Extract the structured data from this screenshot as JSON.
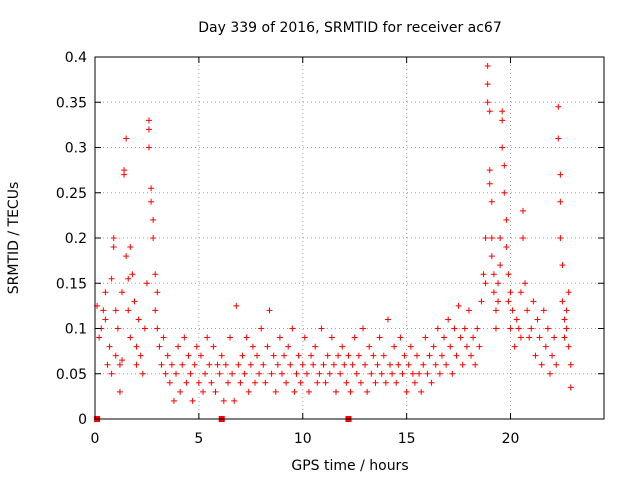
{
  "chart_data": {
    "type": "scatter",
    "title": "Day 339 of 2016, SRMTID for receiver ac67",
    "xlabel": "GPS time / hours",
    "ylabel": "SRMTID / TECUs",
    "xlim": [
      0,
      24.5
    ],
    "ylim": [
      0,
      0.4
    ],
    "xticks": [
      0,
      5,
      10,
      15,
      20
    ],
    "xtick_labels": [
      "0",
      "5",
      "10",
      "15",
      "20"
    ],
    "yticks": [
      0,
      0.05,
      0.1,
      0.15,
      0.2,
      0.25,
      0.3,
      0.35,
      0.4
    ],
    "ytick_labels": [
      "0",
      "0.05",
      "0.1",
      "0.15",
      "0.2",
      "0.25",
      "0.3",
      "0.35",
      "0.4"
    ],
    "grid": true,
    "marker": "+",
    "color": "#ff0000",
    "series": [
      {
        "name": "SRMTID",
        "points": [
          [
            0.1,
            0.125
          ],
          [
            0.2,
            0.09
          ],
          [
            0.3,
            0.1
          ],
          [
            0.4,
            0.12
          ],
          [
            0.5,
            0.14
          ],
          [
            0.5,
            0.11
          ],
          [
            0.6,
            0.06
          ],
          [
            0.7,
            0.08
          ],
          [
            0.8,
            0.05
          ],
          [
            0.8,
            0.155
          ],
          [
            0.9,
            0.2
          ],
          [
            0.9,
            0.19
          ],
          [
            1.0,
            0.12
          ],
          [
            1.0,
            0.07
          ],
          [
            1.1,
            0.1
          ],
          [
            1.2,
            0.03
          ],
          [
            1.2,
            0.06
          ],
          [
            1.3,
            0.14
          ],
          [
            1.3,
            0.065
          ],
          [
            1.4,
            0.27
          ],
          [
            1.4,
            0.275
          ],
          [
            1.5,
            0.31
          ],
          [
            1.5,
            0.18
          ],
          [
            1.6,
            0.12
          ],
          [
            1.6,
            0.155
          ],
          [
            1.7,
            0.09
          ],
          [
            1.7,
            0.19
          ],
          [
            1.8,
            0.16
          ],
          [
            1.9,
            0.13
          ],
          [
            2.0,
            0.08
          ],
          [
            2.0,
            0.06
          ],
          [
            2.1,
            0.11
          ],
          [
            2.2,
            0.07
          ],
          [
            2.3,
            0.05
          ],
          [
            2.4,
            0.1
          ],
          [
            2.5,
            0.15
          ],
          [
            2.6,
            0.33
          ],
          [
            2.6,
            0.32
          ],
          [
            2.6,
            0.3
          ],
          [
            2.7,
            0.255
          ],
          [
            2.7,
            0.24
          ],
          [
            2.8,
            0.22
          ],
          [
            2.8,
            0.2
          ],
          [
            2.9,
            0.16
          ],
          [
            2.9,
            0.12
          ],
          [
            3.0,
            0.14
          ],
          [
            3.0,
            0.1
          ],
          [
            3.1,
            0.08
          ],
          [
            3.2,
            0.06
          ],
          [
            3.3,
            0.09
          ],
          [
            3.4,
            0.05
          ],
          [
            3.5,
            0.07
          ],
          [
            3.6,
            0.04
          ],
          [
            3.7,
            0.06
          ],
          [
            3.8,
            0.02
          ],
          [
            3.9,
            0.05
          ],
          [
            4.0,
            0.08
          ],
          [
            4.1,
            0.03
          ],
          [
            4.2,
            0.06
          ],
          [
            4.3,
            0.09
          ],
          [
            4.4,
            0.04
          ],
          [
            4.5,
            0.07
          ],
          [
            4.6,
            0.05
          ],
          [
            4.7,
            0.02
          ],
          [
            4.8,
            0.06
          ],
          [
            4.9,
            0.08
          ],
          [
            5.0,
            0.04
          ],
          [
            5.1,
            0.07
          ],
          [
            5.2,
            0.03
          ],
          [
            5.3,
            0.05
          ],
          [
            5.4,
            0.09
          ],
          [
            5.5,
            0.06
          ],
          [
            5.6,
            0.04
          ],
          [
            5.7,
            0.08
          ],
          [
            5.8,
            0.03
          ],
          [
            5.9,
            0.06
          ],
          [
            6.0,
            0.05
          ],
          [
            6.1,
            0.07
          ],
          [
            6.2,
            0.02
          ],
          [
            6.3,
            0.06
          ],
          [
            6.4,
            0.04
          ],
          [
            6.5,
            0.09
          ],
          [
            6.6,
            0.05
          ],
          [
            6.7,
            0.02
          ],
          [
            6.8,
            0.125
          ],
          [
            6.9,
            0.06
          ],
          [
            7.0,
            0.04
          ],
          [
            7.1,
            0.07
          ],
          [
            7.2,
            0.05
          ],
          [
            7.3,
            0.09
          ],
          [
            7.4,
            0.03
          ],
          [
            7.5,
            0.06
          ],
          [
            7.6,
            0.08
          ],
          [
            7.7,
            0.04
          ],
          [
            7.8,
            0.07
          ],
          [
            7.9,
            0.05
          ],
          [
            8.0,
            0.1
          ],
          [
            8.1,
            0.06
          ],
          [
            8.2,
            0.04
          ],
          [
            8.3,
            0.08
          ],
          [
            8.4,
            0.12
          ],
          [
            8.5,
            0.05
          ],
          [
            8.6,
            0.07
          ],
          [
            8.7,
            0.03
          ],
          [
            8.8,
            0.06
          ],
          [
            8.9,
            0.09
          ],
          [
            9.0,
            0.05
          ],
          [
            9.1,
            0.07
          ],
          [
            9.2,
            0.04
          ],
          [
            9.3,
            0.08
          ],
          [
            9.4,
            0.06
          ],
          [
            9.5,
            0.1
          ],
          [
            9.6,
            0.03
          ],
          [
            9.7,
            0.05
          ],
          [
            9.8,
            0.07
          ],
          [
            9.9,
            0.04
          ],
          [
            10.0,
            0.06
          ],
          [
            10.1,
            0.09
          ],
          [
            10.2,
            0.05
          ],
          [
            10.3,
            0.03
          ],
          [
            10.4,
            0.07
          ],
          [
            10.5,
            0.06
          ],
          [
            10.6,
            0.08
          ],
          [
            10.7,
            0.04
          ],
          [
            10.8,
            0.05
          ],
          [
            10.9,
            0.1
          ],
          [
            11.0,
            0.06
          ],
          [
            11.1,
            0.04
          ],
          [
            11.2,
            0.07
          ],
          [
            11.3,
            0.05
          ],
          [
            11.4,
            0.09
          ],
          [
            11.5,
            0.06
          ],
          [
            11.6,
            0.03
          ],
          [
            11.7,
            0.07
          ],
          [
            11.8,
            0.05
          ],
          [
            11.9,
            0.08
          ],
          [
            12.0,
            0.06
          ],
          [
            12.1,
            0.04
          ],
          [
            12.2,
            0.07
          ],
          [
            12.3,
            0.03
          ],
          [
            12.4,
            0.06
          ],
          [
            12.5,
            0.09
          ],
          [
            12.6,
            0.05
          ],
          [
            12.7,
            0.07
          ],
          [
            12.8,
            0.04
          ],
          [
            12.9,
            0.1
          ],
          [
            13.0,
            0.06
          ],
          [
            13.1,
            0.03
          ],
          [
            13.2,
            0.08
          ],
          [
            13.3,
            0.05
          ],
          [
            13.4,
            0.07
          ],
          [
            13.5,
            0.04
          ],
          [
            13.6,
            0.06
          ],
          [
            13.7,
            0.09
          ],
          [
            13.8,
            0.05
          ],
          [
            13.9,
            0.07
          ],
          [
            14.0,
            0.04
          ],
          [
            14.1,
            0.11
          ],
          [
            14.2,
            0.06
          ],
          [
            14.3,
            0.05
          ],
          [
            14.4,
            0.08
          ],
          [
            14.5,
            0.04
          ],
          [
            14.6,
            0.06
          ],
          [
            14.7,
            0.09
          ],
          [
            14.8,
            0.05
          ],
          [
            14.9,
            0.07
          ],
          [
            15.0,
            0.03
          ],
          [
            15.1,
            0.06
          ],
          [
            15.2,
            0.08
          ],
          [
            15.3,
            0.05
          ],
          [
            15.4,
            0.04
          ],
          [
            15.5,
            0.07
          ],
          [
            15.6,
            0.05
          ],
          [
            15.7,
            0.03
          ],
          [
            15.8,
            0.06
          ],
          [
            15.9,
            0.09
          ],
          [
            16.0,
            0.05
          ],
          [
            16.1,
            0.07
          ],
          [
            16.2,
            0.04
          ],
          [
            16.3,
            0.08
          ],
          [
            16.4,
            0.06
          ],
          [
            16.5,
            0.1
          ],
          [
            16.6,
            0.05
          ],
          [
            16.7,
            0.07
          ],
          [
            16.8,
            0.09
          ],
          [
            16.9,
            0.06
          ],
          [
            17.0,
            0.11
          ],
          [
            17.1,
            0.08
          ],
          [
            17.2,
            0.05
          ],
          [
            17.3,
            0.1
          ],
          [
            17.4,
            0.07
          ],
          [
            17.5,
            0.125
          ],
          [
            17.6,
            0.09
          ],
          [
            17.7,
            0.06
          ],
          [
            17.8,
            0.1
          ],
          [
            17.9,
            0.08
          ],
          [
            18.0,
            0.12
          ],
          [
            18.1,
            0.07
          ],
          [
            18.2,
            0.09
          ],
          [
            18.3,
            0.06
          ],
          [
            18.4,
            0.1
          ],
          [
            18.5,
            0.08
          ],
          [
            18.6,
            0.13
          ],
          [
            18.7,
            0.16
          ],
          [
            18.8,
            0.2
          ],
          [
            18.8,
            0.15
          ],
          [
            18.9,
            0.39
          ],
          [
            18.9,
            0.37
          ],
          [
            18.9,
            0.35
          ],
          [
            19.0,
            0.34
          ],
          [
            19.0,
            0.275
          ],
          [
            19.0,
            0.26
          ],
          [
            19.1,
            0.24
          ],
          [
            19.1,
            0.2
          ],
          [
            19.1,
            0.18
          ],
          [
            19.2,
            0.16
          ],
          [
            19.2,
            0.14
          ],
          [
            19.3,
            0.12
          ],
          [
            19.3,
            0.1
          ],
          [
            19.4,
            0.13
          ],
          [
            19.4,
            0.15
          ],
          [
            19.5,
            0.2
          ],
          [
            19.5,
            0.17
          ],
          [
            19.6,
            0.34
          ],
          [
            19.6,
            0.33
          ],
          [
            19.6,
            0.3
          ],
          [
            19.7,
            0.28
          ],
          [
            19.7,
            0.25
          ],
          [
            19.8,
            0.22
          ],
          [
            19.8,
            0.19
          ],
          [
            19.9,
            0.16
          ],
          [
            19.9,
            0.13
          ],
          [
            20.0,
            0.1
          ],
          [
            20.0,
            0.14
          ],
          [
            20.1,
            0.12
          ],
          [
            20.2,
            0.08
          ],
          [
            20.3,
            0.11
          ],
          [
            20.4,
            0.1
          ],
          [
            20.5,
            0.14
          ],
          [
            20.5,
            0.09
          ],
          [
            20.6,
            0.23
          ],
          [
            20.6,
            0.2
          ],
          [
            20.7,
            0.15
          ],
          [
            20.8,
            0.12
          ],
          [
            20.9,
            0.09
          ],
          [
            21.0,
            0.1
          ],
          [
            21.1,
            0.13
          ],
          [
            21.2,
            0.07
          ],
          [
            21.3,
            0.11
          ],
          [
            21.4,
            0.09
          ],
          [
            21.5,
            0.06
          ],
          [
            21.6,
            0.12
          ],
          [
            21.7,
            0.08
          ],
          [
            21.8,
            0.1
          ],
          [
            21.9,
            0.05
          ],
          [
            22.0,
            0.07
          ],
          [
            22.1,
            0.09
          ],
          [
            22.2,
            0.06
          ],
          [
            22.3,
            0.345
          ],
          [
            22.3,
            0.31
          ],
          [
            22.4,
            0.27
          ],
          [
            22.4,
            0.24
          ],
          [
            22.4,
            0.2
          ],
          [
            22.5,
            0.17
          ],
          [
            22.5,
            0.13
          ],
          [
            22.6,
            0.11
          ],
          [
            22.6,
            0.09
          ],
          [
            22.7,
            0.12
          ],
          [
            22.7,
            0.1
          ],
          [
            22.8,
            0.14
          ],
          [
            22.8,
            0.08
          ],
          [
            22.9,
            0.06
          ],
          [
            22.9,
            0.035
          ]
        ]
      }
    ],
    "baseline_markers": [
      0.1,
      6.1,
      12.2
    ]
  }
}
